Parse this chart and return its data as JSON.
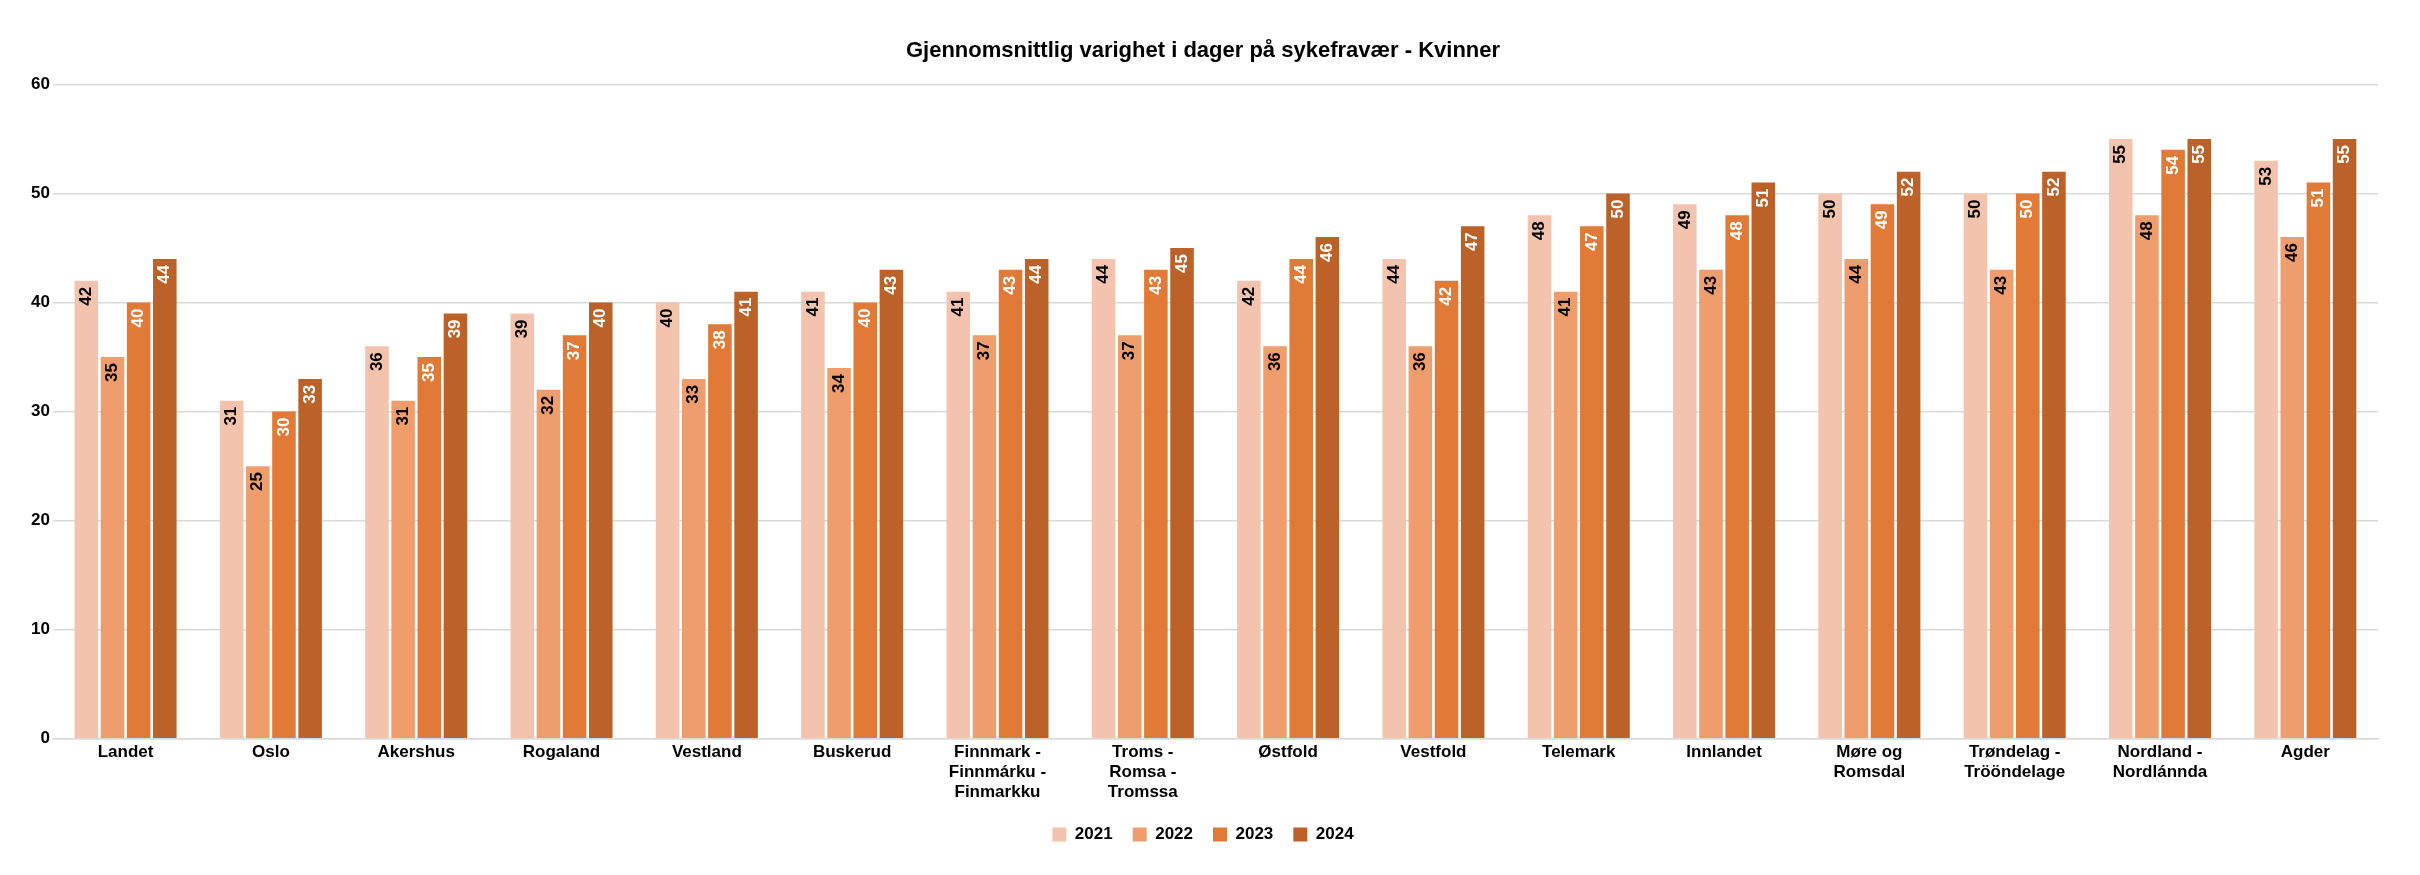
{
  "chart_data": {
    "type": "bar",
    "title": "Gjennomsnittlig varighet i dager på sykefravær - Kvinner",
    "categories": [
      "Landet",
      "Oslo",
      "Akershus",
      "Rogaland",
      "Vestland",
      "Buskerud",
      "Finnmark - Finnmárku - Finmarkku",
      "Troms - Romsa - Tromssa",
      "Østfold",
      "Vestfold",
      "Telemark",
      "Innlandet",
      "Møre og Romsdal",
      "Trøndelag - Trööndelage",
      "Nordland - Nordlánnda",
      "Agder"
    ],
    "series": [
      {
        "name": "2021",
        "color": "#f4c3ad",
        "values": [
          42,
          31,
          36,
          39,
          40,
          41,
          41,
          44,
          42,
          44,
          48,
          49,
          50,
          50,
          55,
          53
        ]
      },
      {
        "name": "2022",
        "color": "#ef9d6c",
        "values": [
          35,
          25,
          31,
          32,
          33,
          34,
          37,
          37,
          36,
          36,
          41,
          43,
          44,
          43,
          48,
          46
        ]
      },
      {
        "name": "2023",
        "color": "#e07a36",
        "values": [
          40,
          30,
          35,
          37,
          38,
          40,
          43,
          43,
          44,
          42,
          47,
          48,
          49,
          50,
          54,
          51
        ]
      },
      {
        "name": "2024",
        "color": "#bc6128",
        "values": [
          44,
          33,
          39,
          40,
          41,
          43,
          44,
          45,
          46,
          47,
          50,
          51,
          52,
          52,
          55,
          55
        ]
      }
    ],
    "ylim": [
      0,
      60
    ],
    "yticks": [
      0,
      10,
      20,
      30,
      40,
      50,
      60
    ],
    "grid": "y",
    "legend": "bottom",
    "data_labels": true
  }
}
